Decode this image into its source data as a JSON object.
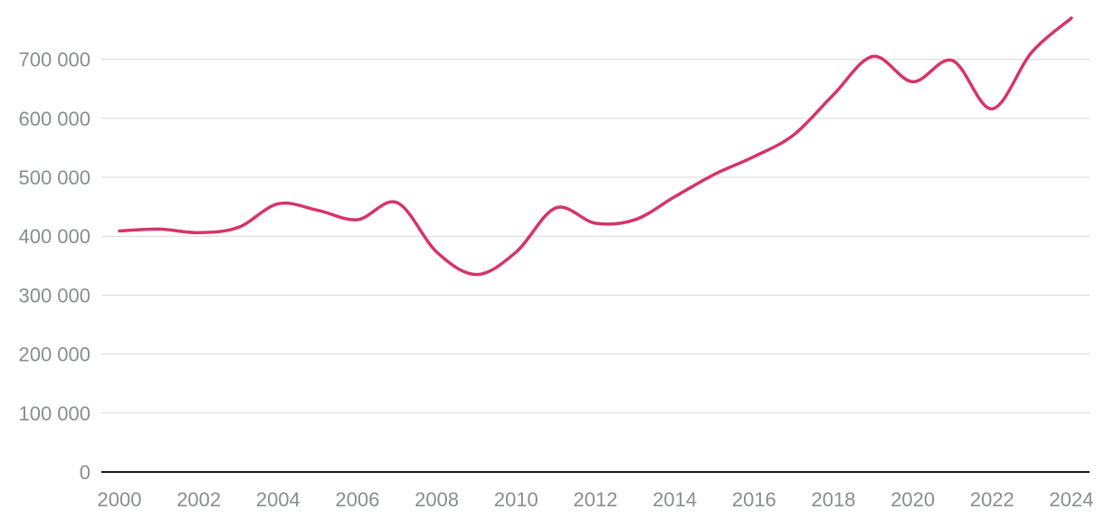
{
  "chart_data": {
    "type": "line",
    "title": "",
    "xlabel": "",
    "ylabel": "",
    "x": [
      2000,
      2001,
      2002,
      2003,
      2004,
      2005,
      2006,
      2007,
      2008,
      2009,
      2010,
      2011,
      2012,
      2013,
      2014,
      2015,
      2016,
      2017,
      2018,
      2019,
      2020,
      2021,
      2022,
      2023,
      2024
    ],
    "series": [
      {
        "color": "#d6336c",
        "values": [
          409000,
          412000,
          406000,
          415000,
          455000,
          444000,
          428000,
          457000,
          373000,
          335000,
          373000,
          448000,
          422000,
          428000,
          467000,
          505000,
          535000,
          572000,
          640000,
          705000,
          662000,
          698000,
          616000,
          712000,
          770000
        ]
      }
    ],
    "xlim": [
      2000,
      2024
    ],
    "ylim": [
      0,
      770000
    ],
    "x_tick_labels": [
      "2000",
      "2002",
      "2004",
      "2006",
      "2008",
      "2010",
      "2012",
      "2014",
      "2016",
      "2018",
      "2020",
      "2022",
      "2024"
    ],
    "y_tick_values": [
      0,
      100000,
      200000,
      300000,
      400000,
      500000,
      600000,
      700000
    ],
    "y_tick_labels": [
      "0",
      "100 000",
      "200 000",
      "300 000",
      "400 000",
      "500 000",
      "600 000",
      "700 000"
    ],
    "grid": true,
    "legend": "none"
  }
}
